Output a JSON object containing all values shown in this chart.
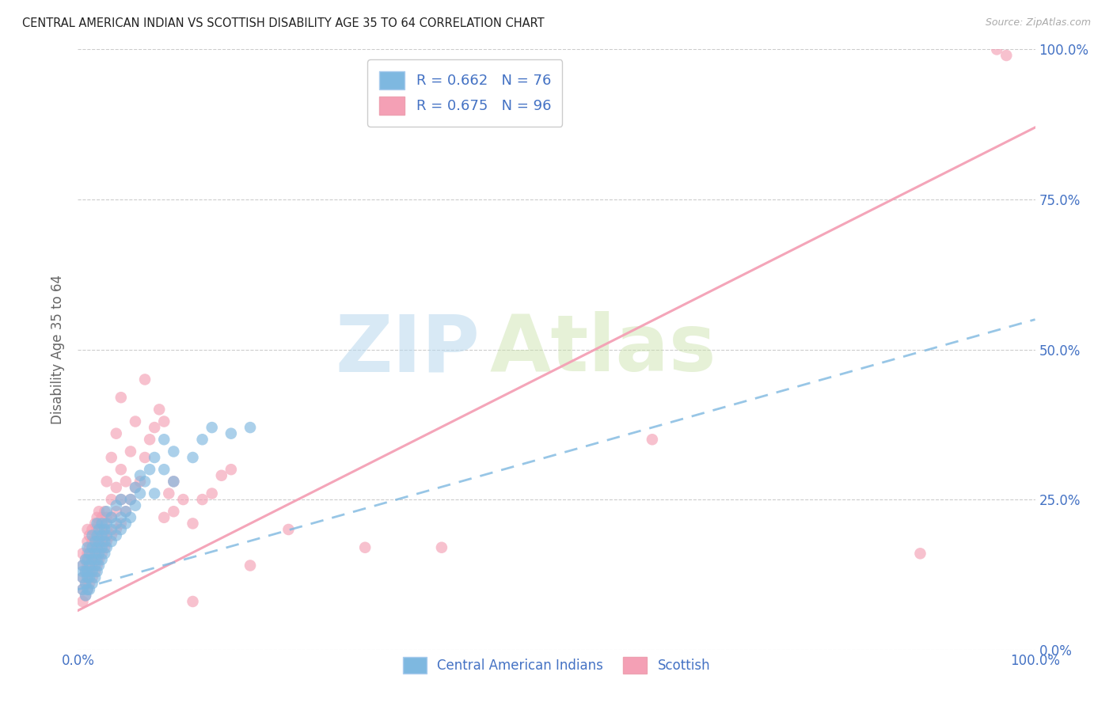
{
  "title": "CENTRAL AMERICAN INDIAN VS SCOTTISH DISABILITY AGE 35 TO 64 CORRELATION CHART",
  "source": "Source: ZipAtlas.com",
  "ylabel": "Disability Age 35 to 64",
  "xlim": [
    0,
    1
  ],
  "ylim": [
    0,
    1
  ],
  "ytick_positions": [
    0.0,
    0.25,
    0.5,
    0.75,
    1.0
  ],
  "ytick_labels": [
    "0.0%",
    "25.0%",
    "50.0%",
    "75.0%",
    "100.0%"
  ],
  "xtick_positions": [
    0.0,
    1.0
  ],
  "xtick_labels": [
    "0.0%",
    "100.0%"
  ],
  "watermark_zip": "ZIP",
  "watermark_atlas": "Atlas",
  "legend_blue_r": "R = 0.662",
  "legend_blue_n": "N = 76",
  "legend_pink_r": "R = 0.675",
  "legend_pink_n": "N = 96",
  "blue_color": "#7eb8e0",
  "pink_color": "#f4a0b5",
  "blue_scatter_color": "#7eb8e0",
  "pink_scatter_color": "#f4a0b5",
  "title_color": "#222222",
  "label_color": "#4472c4",
  "background_color": "#ffffff",
  "grid_color": "#cccccc",
  "legend_label_blue": "Central American Indians",
  "legend_label_pink": "Scottish",
  "blue_scatter": [
    [
      0.005,
      0.1
    ],
    [
      0.005,
      0.12
    ],
    [
      0.005,
      0.13
    ],
    [
      0.005,
      0.14
    ],
    [
      0.008,
      0.09
    ],
    [
      0.008,
      0.11
    ],
    [
      0.008,
      0.13
    ],
    [
      0.008,
      0.15
    ],
    [
      0.01,
      0.1
    ],
    [
      0.01,
      0.12
    ],
    [
      0.01,
      0.13
    ],
    [
      0.01,
      0.15
    ],
    [
      0.01,
      0.17
    ],
    [
      0.012,
      0.1
    ],
    [
      0.012,
      0.12
    ],
    [
      0.012,
      0.14
    ],
    [
      0.012,
      0.16
    ],
    [
      0.015,
      0.11
    ],
    [
      0.015,
      0.13
    ],
    [
      0.015,
      0.15
    ],
    [
      0.015,
      0.17
    ],
    [
      0.015,
      0.19
    ],
    [
      0.018,
      0.12
    ],
    [
      0.018,
      0.14
    ],
    [
      0.018,
      0.16
    ],
    [
      0.018,
      0.18
    ],
    [
      0.02,
      0.13
    ],
    [
      0.02,
      0.15
    ],
    [
      0.02,
      0.17
    ],
    [
      0.02,
      0.19
    ],
    [
      0.02,
      0.21
    ],
    [
      0.022,
      0.14
    ],
    [
      0.022,
      0.16
    ],
    [
      0.022,
      0.18
    ],
    [
      0.022,
      0.2
    ],
    [
      0.025,
      0.15
    ],
    [
      0.025,
      0.17
    ],
    [
      0.025,
      0.19
    ],
    [
      0.025,
      0.21
    ],
    [
      0.028,
      0.16
    ],
    [
      0.028,
      0.18
    ],
    [
      0.028,
      0.2
    ],
    [
      0.03,
      0.17
    ],
    [
      0.03,
      0.19
    ],
    [
      0.03,
      0.21
    ],
    [
      0.03,
      0.23
    ],
    [
      0.035,
      0.18
    ],
    [
      0.035,
      0.2
    ],
    [
      0.035,
      0.22
    ],
    [
      0.04,
      0.19
    ],
    [
      0.04,
      0.21
    ],
    [
      0.04,
      0.24
    ],
    [
      0.045,
      0.2
    ],
    [
      0.045,
      0.22
    ],
    [
      0.045,
      0.25
    ],
    [
      0.05,
      0.21
    ],
    [
      0.05,
      0.23
    ],
    [
      0.055,
      0.22
    ],
    [
      0.055,
      0.25
    ],
    [
      0.06,
      0.24
    ],
    [
      0.06,
      0.27
    ],
    [
      0.065,
      0.26
    ],
    [
      0.065,
      0.29
    ],
    [
      0.07,
      0.28
    ],
    [
      0.075,
      0.3
    ],
    [
      0.08,
      0.26
    ],
    [
      0.08,
      0.32
    ],
    [
      0.09,
      0.3
    ],
    [
      0.09,
      0.35
    ],
    [
      0.1,
      0.28
    ],
    [
      0.1,
      0.33
    ],
    [
      0.12,
      0.32
    ],
    [
      0.13,
      0.35
    ],
    [
      0.14,
      0.37
    ],
    [
      0.16,
      0.36
    ],
    [
      0.18,
      0.37
    ]
  ],
  "pink_scatter": [
    [
      0.005,
      0.08
    ],
    [
      0.005,
      0.1
    ],
    [
      0.005,
      0.12
    ],
    [
      0.005,
      0.14
    ],
    [
      0.005,
      0.16
    ],
    [
      0.008,
      0.09
    ],
    [
      0.008,
      0.11
    ],
    [
      0.008,
      0.13
    ],
    [
      0.008,
      0.15
    ],
    [
      0.01,
      0.1
    ],
    [
      0.01,
      0.12
    ],
    [
      0.01,
      0.14
    ],
    [
      0.01,
      0.16
    ],
    [
      0.01,
      0.18
    ],
    [
      0.01,
      0.2
    ],
    [
      0.012,
      0.11
    ],
    [
      0.012,
      0.13
    ],
    [
      0.012,
      0.15
    ],
    [
      0.012,
      0.17
    ],
    [
      0.012,
      0.19
    ],
    [
      0.015,
      0.12
    ],
    [
      0.015,
      0.14
    ],
    [
      0.015,
      0.16
    ],
    [
      0.015,
      0.18
    ],
    [
      0.015,
      0.2
    ],
    [
      0.018,
      0.13
    ],
    [
      0.018,
      0.15
    ],
    [
      0.018,
      0.17
    ],
    [
      0.018,
      0.19
    ],
    [
      0.018,
      0.21
    ],
    [
      0.02,
      0.14
    ],
    [
      0.02,
      0.16
    ],
    [
      0.02,
      0.18
    ],
    [
      0.02,
      0.2
    ],
    [
      0.02,
      0.22
    ],
    [
      0.022,
      0.15
    ],
    [
      0.022,
      0.17
    ],
    [
      0.022,
      0.19
    ],
    [
      0.022,
      0.21
    ],
    [
      0.022,
      0.23
    ],
    [
      0.025,
      0.16
    ],
    [
      0.025,
      0.18
    ],
    [
      0.025,
      0.2
    ],
    [
      0.025,
      0.22
    ],
    [
      0.028,
      0.17
    ],
    [
      0.028,
      0.19
    ],
    [
      0.028,
      0.21
    ],
    [
      0.028,
      0.23
    ],
    [
      0.03,
      0.18
    ],
    [
      0.03,
      0.2
    ],
    [
      0.03,
      0.22
    ],
    [
      0.03,
      0.28
    ],
    [
      0.035,
      0.19
    ],
    [
      0.035,
      0.22
    ],
    [
      0.035,
      0.25
    ],
    [
      0.035,
      0.32
    ],
    [
      0.04,
      0.2
    ],
    [
      0.04,
      0.23
    ],
    [
      0.04,
      0.27
    ],
    [
      0.04,
      0.36
    ],
    [
      0.045,
      0.21
    ],
    [
      0.045,
      0.25
    ],
    [
      0.045,
      0.3
    ],
    [
      0.045,
      0.42
    ],
    [
      0.05,
      0.23
    ],
    [
      0.05,
      0.28
    ],
    [
      0.055,
      0.25
    ],
    [
      0.055,
      0.33
    ],
    [
      0.06,
      0.27
    ],
    [
      0.06,
      0.38
    ],
    [
      0.065,
      0.28
    ],
    [
      0.07,
      0.32
    ],
    [
      0.07,
      0.45
    ],
    [
      0.075,
      0.35
    ],
    [
      0.08,
      0.37
    ],
    [
      0.085,
      0.4
    ],
    [
      0.09,
      0.38
    ],
    [
      0.09,
      0.22
    ],
    [
      0.095,
      0.26
    ],
    [
      0.1,
      0.23
    ],
    [
      0.1,
      0.28
    ],
    [
      0.11,
      0.25
    ],
    [
      0.12,
      0.21
    ],
    [
      0.12,
      0.08
    ],
    [
      0.13,
      0.25
    ],
    [
      0.14,
      0.26
    ],
    [
      0.15,
      0.29
    ],
    [
      0.16,
      0.3
    ],
    [
      0.18,
      0.14
    ],
    [
      0.22,
      0.2
    ],
    [
      0.3,
      0.17
    ],
    [
      0.38,
      0.17
    ],
    [
      0.6,
      0.35
    ],
    [
      0.88,
      0.16
    ],
    [
      0.96,
      1.0
    ],
    [
      0.97,
      0.99
    ]
  ],
  "blue_fit_x": [
    0.0,
    1.0
  ],
  "blue_fit_y": [
    0.1,
    0.55
  ],
  "pink_fit_x": [
    0.0,
    1.0
  ],
  "pink_fit_y": [
    0.065,
    0.87
  ]
}
